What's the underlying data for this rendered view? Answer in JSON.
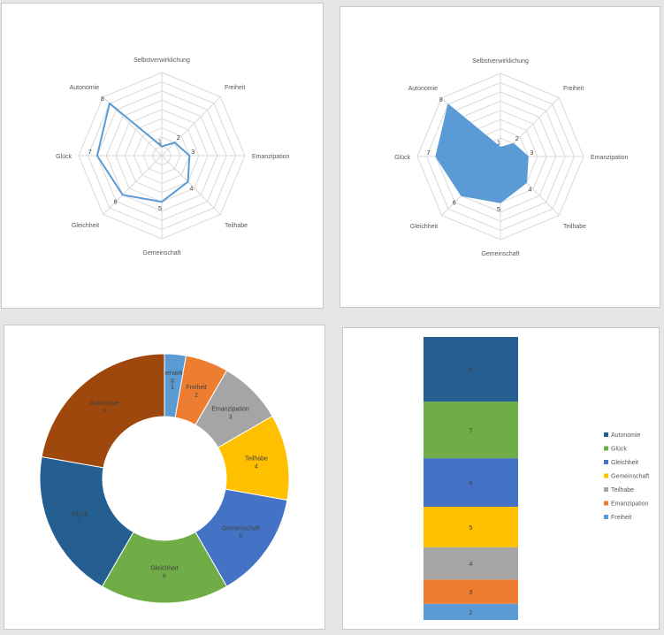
{
  "chart_data": [
    {
      "type": "radar",
      "variant": "line",
      "categories": [
        "Selbstverwirklichung",
        "Freiheit",
        "Emanzipation",
        "Teilhabe",
        "Gemeinschaft",
        "Gleichheit",
        "Glück",
        "Autonomie"
      ],
      "values": [
        1,
        2,
        3,
        4,
        5,
        6,
        7,
        8
      ],
      "ylim": [
        0,
        9
      ],
      "grid": true,
      "color": "#5b9bd5"
    },
    {
      "type": "radar",
      "variant": "filled",
      "categories": [
        "Selbstverwirklichung",
        "Freiheit",
        "Emanzipation",
        "Teilhabe",
        "Gemeinschaft",
        "Gleichheit",
        "Glück",
        "Autonomie"
      ],
      "values": [
        1,
        2,
        3,
        4,
        5,
        6,
        7,
        8
      ],
      "ylim": [
        0,
        9
      ],
      "grid": true,
      "color": "#5b9bd5"
    },
    {
      "type": "pie",
      "variant": "donut",
      "categories": [
        "Selbstverwirklichun",
        "Freiheit",
        "Emanzipation",
        "Teilhabe",
        "Gemeinschaft",
        "Gleichheit",
        "Glück",
        "Autonomie"
      ],
      "values": [
        1,
        2,
        3,
        4,
        5,
        6,
        7,
        8
      ],
      "colors": [
        "#5b9bd5",
        "#ed7d31",
        "#a5a5a5",
        "#ffc000",
        "#4472c4",
        "#70ad47",
        "#255e91",
        "#9e480e"
      ],
      "first_label_prefix": "g",
      "label_color": "#404040"
    },
    {
      "type": "bar",
      "variant": "stacked",
      "categories": [
        "Freiheit",
        "Emanzipation",
        "Teilhabe",
        "Gemeinschaft",
        "Gleichheit",
        "Glück",
        "Autonomie"
      ],
      "values": [
        2,
        3,
        4,
        5,
        6,
        7,
        8
      ],
      "colors": [
        "#5b9bd5",
        "#ed7d31",
        "#a5a5a5",
        "#ffc000",
        "#4472c4",
        "#70ad47",
        "#255e91"
      ],
      "legend_position": "right",
      "legend_order": [
        "Autonomie",
        "Glück",
        "Gleichheit",
        "Gemeinschaft",
        "Teilhabe",
        "Emanzipation",
        "Freiheit"
      ]
    }
  ]
}
